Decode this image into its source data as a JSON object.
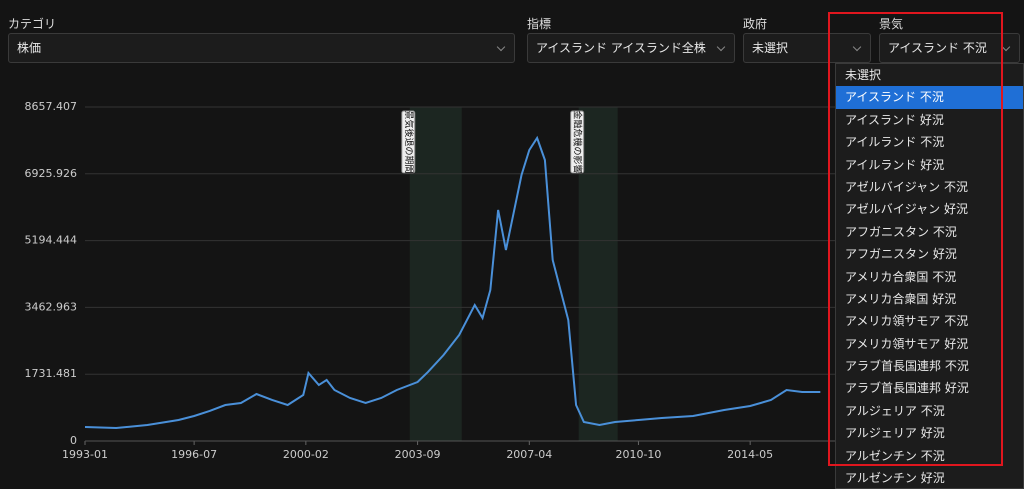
{
  "filters": [
    {
      "label": "カテゴリ",
      "value": "株価"
    },
    {
      "label": "指標",
      "value": "アイスランド アイスランド全株"
    },
    {
      "label": "政府",
      "value": "未選択"
    },
    {
      "label": "景気",
      "value": "アイスランド 不況"
    }
  ],
  "dropdown": {
    "selected": 1,
    "options": [
      "未選択",
      "アイスランド 不況",
      "アイスランド 好況",
      "アイルランド 不況",
      "アイルランド 好況",
      "アゼルバイジャン 不況",
      "アゼルバイジャン 好況",
      "アフガニスタン 不況",
      "アフガニスタン 好況",
      "アメリカ合衆国 不況",
      "アメリカ合衆国 好況",
      "アメリカ領サモア 不況",
      "アメリカ領サモア 好況",
      "アラブ首長国連邦 不況",
      "アラブ首長国連邦 好況",
      "アルジェリア 不況",
      "アルジェリア 好況",
      "アルゼンチン 不況",
      "アルゼンチン 好況"
    ]
  },
  "chart_data": {
    "type": "line",
    "x": [
      "1993-01",
      "1994-01",
      "1995-01",
      "1996-01",
      "1996-07",
      "1997-01",
      "1997-07",
      "1998-01",
      "1998-07",
      "1999-01",
      "1999-07",
      "2000-01",
      "2000-03",
      "2000-07",
      "2000-10",
      "2001-01",
      "2001-07",
      "2002-01",
      "2002-07",
      "2003-01",
      "2003-09",
      "2004-01",
      "2004-07",
      "2005-01",
      "2005-07",
      "2005-10",
      "2006-01",
      "2006-04",
      "2006-07",
      "2007-01",
      "2007-04",
      "2007-07",
      "2007-10",
      "2008-01",
      "2008-04",
      "2008-07",
      "2008-10",
      "2009-01",
      "2009-07",
      "2010-01",
      "2010-10",
      "2011-07",
      "2012-07",
      "2013-07",
      "2014-05",
      "2015-01",
      "2015-07",
      "2016-01",
      "2016-08"
    ],
    "series": [
      {
        "color": "#4a90d9",
        "values": [
          363,
          337,
          415,
          544,
          648,
          778,
          933,
          985,
          1218,
          1063,
          933,
          1192,
          1762,
          1452,
          1581,
          1322,
          1115,
          985,
          1115,
          1322,
          1529,
          1789,
          2229,
          2748,
          3525,
          3188,
          3914,
          5988,
          4951,
          6895,
          7543,
          7854,
          7284,
          4692,
          3914,
          3136,
          933,
          492,
          415,
          492,
          544,
          596,
          648,
          804,
          907,
          1063,
          1322,
          1270,
          1270
        ]
      }
    ],
    "xlim": [
      "1993-01",
      "2022-09"
    ],
    "xticks": [
      "1993-01",
      "1996-07",
      "2000-02",
      "2003-09",
      "2007-04",
      "2010-10",
      "2014-05"
    ],
    "ylim": [
      0,
      8657.407
    ],
    "yticks": [
      0,
      1731.481,
      3462.963,
      5194.444,
      6925.926,
      8657.407
    ],
    "grid": true,
    "bands": [
      {
        "start": "2003-06",
        "end": "2005-02",
        "label": "景気後退の期間"
      },
      {
        "start": "2008-11",
        "end": "2010-02",
        "label": "金融危機の影響"
      }
    ]
  }
}
